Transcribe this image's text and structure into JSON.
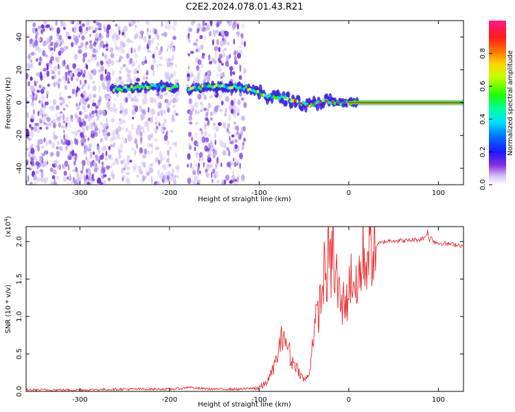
{
  "title": "C2E2.2024.078.01.43.R21",
  "chart_data": [
    {
      "type": "heatmap",
      "xlabel": "Height of straight line (km)",
      "ylabel": "Frequency (Hz)",
      "xlim": [
        -360,
        128
      ],
      "ylim": [
        -50,
        50
      ],
      "x_ticks": [
        -300,
        -200,
        -100,
        0,
        100
      ],
      "y_ticks": [
        -40,
        -20,
        0,
        20,
        40
      ],
      "colorbar": {
        "label": "Normalized spectral amplitude",
        "range": [
          0.0,
          1.0
        ],
        "ticks": [
          0.0,
          0.2,
          0.4,
          0.6,
          0.8
        ],
        "tick_labels": [
          "0.0",
          "0.2",
          "0.4",
          "0.6",
          "0.8"
        ]
      },
      "ridge": {
        "x": [
          -265,
          -240,
          -215,
          -190,
          -180,
          -155,
          -130,
          -115,
          -100,
          -90,
          -75,
          -60,
          -45,
          -35,
          -25,
          -15,
          0,
          20,
          60,
          100,
          128
        ],
        "frequency": [
          8,
          9,
          10,
          9,
          8,
          10,
          10,
          9,
          6,
          4,
          3,
          1,
          -2,
          0,
          1,
          0,
          0,
          0,
          0,
          0,
          0
        ]
      },
      "noise_regions": [
        [
          -360,
          -265
        ],
        [
          -265,
          -190
        ],
        [
          -180,
          -115
        ]
      ]
    },
    {
      "type": "line",
      "xlabel": "Height of straight line (km)",
      "ylabel": "SNR (10 * v/v)",
      "multiplier": "(x10",
      "multiplier_exp": "4",
      "multiplier_close": ")",
      "xlim": [
        -360,
        128
      ],
      "ylim": [
        0.0,
        2.2
      ],
      "x_ticks": [
        -300,
        -200,
        -100,
        0,
        100
      ],
      "y_ticks": [
        0.0,
        0.5,
        1.0,
        1.5,
        2.0
      ],
      "y_tick_labels": [
        "0.0",
        "0.5",
        "1.0",
        "1.5",
        "2.0"
      ],
      "series": [
        {
          "color": "#e8262a",
          "x": [
            -360,
            -300,
            -250,
            -200,
            -185,
            -178,
            -170,
            -150,
            -120,
            -110,
            -100,
            -95,
            -90,
            -85,
            -80,
            -75,
            -72,
            -70,
            -67,
            -65,
            -60,
            -55,
            -50,
            -45,
            -42,
            -40,
            -35,
            -30,
            -27,
            -25,
            -22,
            -20,
            -18,
            -16,
            -14,
            -12,
            -10,
            -8,
            -5,
            -2,
            0,
            5,
            10,
            12,
            14,
            16,
            18,
            20,
            25,
            30,
            35,
            40,
            50,
            60,
            70,
            80,
            85,
            88,
            90,
            92,
            95,
            100,
            110,
            120,
            128
          ],
          "values": [
            0.02,
            0.02,
            0.03,
            0.03,
            0.04,
            0.06,
            0.04,
            0.03,
            0.03,
            0.04,
            0.05,
            0.08,
            0.15,
            0.28,
            0.45,
            0.7,
            0.82,
            0.55,
            0.65,
            0.4,
            0.38,
            0.25,
            0.15,
            0.2,
            0.45,
            0.75,
            1.0,
            1.3,
            1.65,
            1.45,
            1.9,
            1.55,
            2.15,
            1.4,
            1.65,
            1.25,
            1.35,
            1.05,
            1.3,
            1.15,
            1.45,
            1.55,
            1.2,
            1.85,
            1.35,
            1.95,
            1.65,
            1.8,
            1.87,
            1.93,
            1.98,
            2.0,
            2.02,
            2.01,
            2.02,
            2.03,
            2.06,
            2.14,
            1.98,
            2.08,
            2.0,
            1.98,
            1.97,
            1.96,
            1.94
          ]
        }
      ]
    }
  ]
}
